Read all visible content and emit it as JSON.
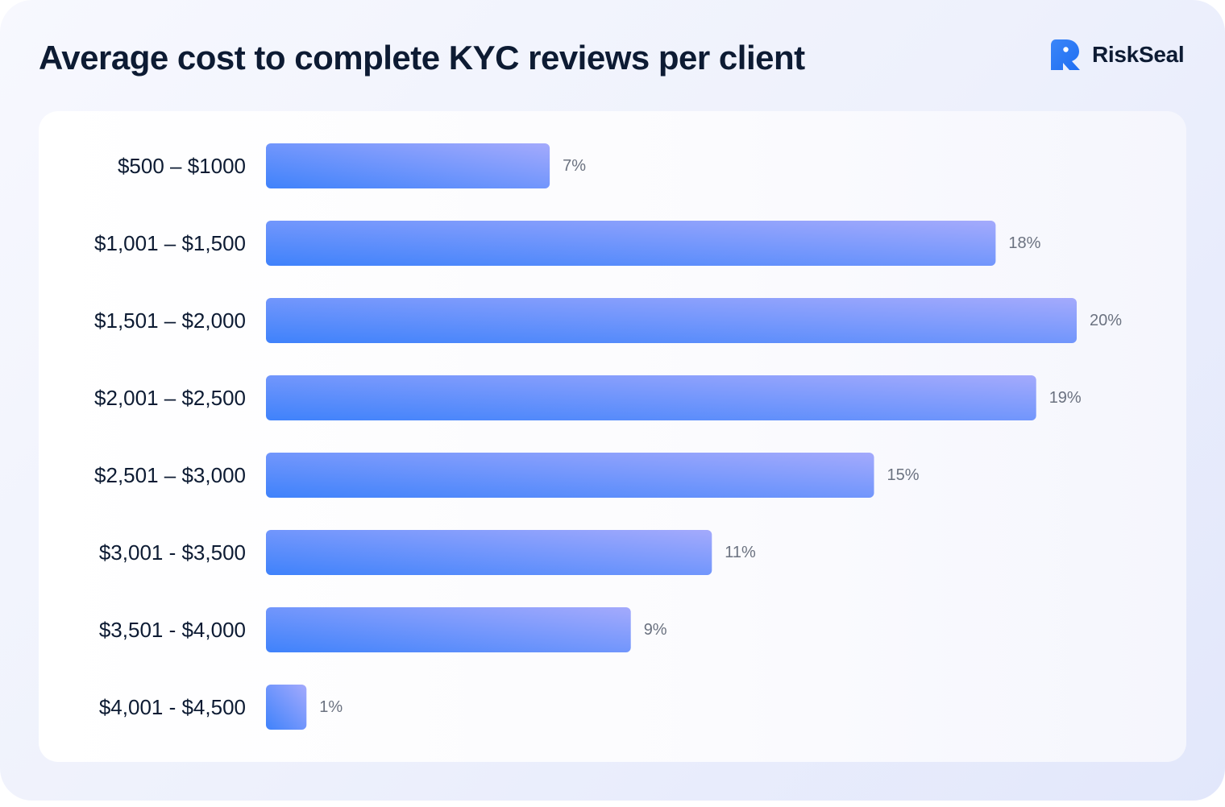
{
  "title": "Average cost to complete KYC reviews per client",
  "brand": {
    "name": "RiskSeal",
    "icon": "seal-logo-icon",
    "color": "#2f7bf6"
  },
  "colors": {
    "bar_start": "#3f82fb",
    "bar_end": "#a4aafc",
    "text_dark": "#0d1b33",
    "text_muted": "#6b7280"
  },
  "chart_data": {
    "type": "bar",
    "orientation": "horizontal",
    "title": "Average cost to complete KYC reviews per client",
    "categories": [
      "$500 – $1000",
      "$1,001 – $1,500",
      "$1,501 – $2,000",
      "$2,001 – $2,500",
      "$2,501 – $3,000",
      "$3,001 - $3,500",
      "$3,501 - $4,000",
      "$4,001 - $4,500"
    ],
    "values": [
      7,
      18,
      20,
      19,
      15,
      11,
      9,
      1
    ],
    "value_labels": [
      "7%",
      "18%",
      "20%",
      "19%",
      "15%",
      "11%",
      "9%",
      "1%"
    ],
    "xlim": [
      0,
      20
    ],
    "unit": "%",
    "grid": false,
    "legend": "none"
  }
}
